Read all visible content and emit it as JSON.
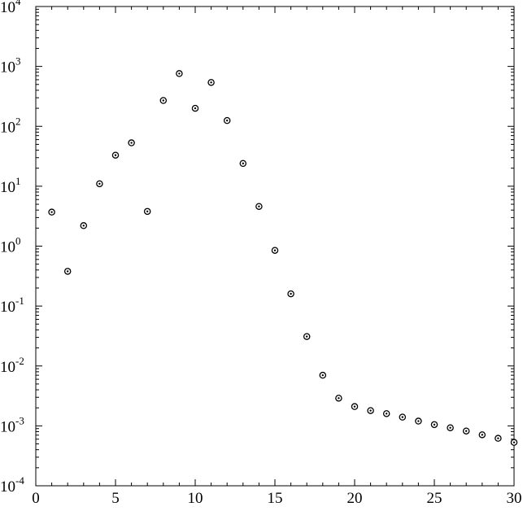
{
  "chart_data": {
    "type": "scatter",
    "title": "",
    "xlabel": "",
    "ylabel": "",
    "xlim": [
      0,
      30
    ],
    "ylim": [
      0.0001,
      10000
    ],
    "y_scale": "log",
    "grid": false,
    "legend": "none",
    "x_ticks": [
      0,
      5,
      10,
      15,
      20,
      25,
      30
    ],
    "x_tick_labels": [
      "0",
      "5",
      "10",
      "15",
      "20",
      "25",
      "30"
    ],
    "y_ticks": [
      {
        "value": 0.0001,
        "base": "10",
        "exp": "-4"
      },
      {
        "value": 0.001,
        "base": "10",
        "exp": "-3"
      },
      {
        "value": 0.01,
        "base": "10",
        "exp": "-2"
      },
      {
        "value": 0.1,
        "base": "10",
        "exp": "-1"
      },
      {
        "value": 1,
        "base": "10",
        "exp": "0"
      },
      {
        "value": 10,
        "base": "10",
        "exp": "1"
      },
      {
        "value": 100,
        "base": "10",
        "exp": "2"
      },
      {
        "value": 1000,
        "base": "10",
        "exp": "3"
      },
      {
        "value": 10000,
        "base": "10",
        "exp": "4"
      }
    ],
    "series": [
      {
        "x": [
          1,
          2,
          3,
          4,
          5,
          6,
          7,
          8,
          9,
          10,
          11,
          12,
          13,
          14,
          15,
          16,
          17,
          18,
          19,
          20,
          21,
          22,
          23,
          24,
          25,
          26,
          27,
          28,
          29,
          30
        ],
        "y": [
          3.7,
          0.38,
          2.2,
          11,
          33,
          53,
          3.8,
          270,
          760,
          200,
          540,
          125,
          24,
          4.6,
          0.85,
          0.16,
          0.031,
          0.007,
          0.0029,
          0.0021,
          0.0018,
          0.0016,
          0.0014,
          0.0012,
          0.00105,
          0.00093,
          0.00082,
          0.00071,
          0.00062,
          0.00053
        ]
      }
    ],
    "colors": {
      "axis": "#000000",
      "marker_fill": "#ffffff",
      "marker_stroke": "#000000"
    }
  }
}
